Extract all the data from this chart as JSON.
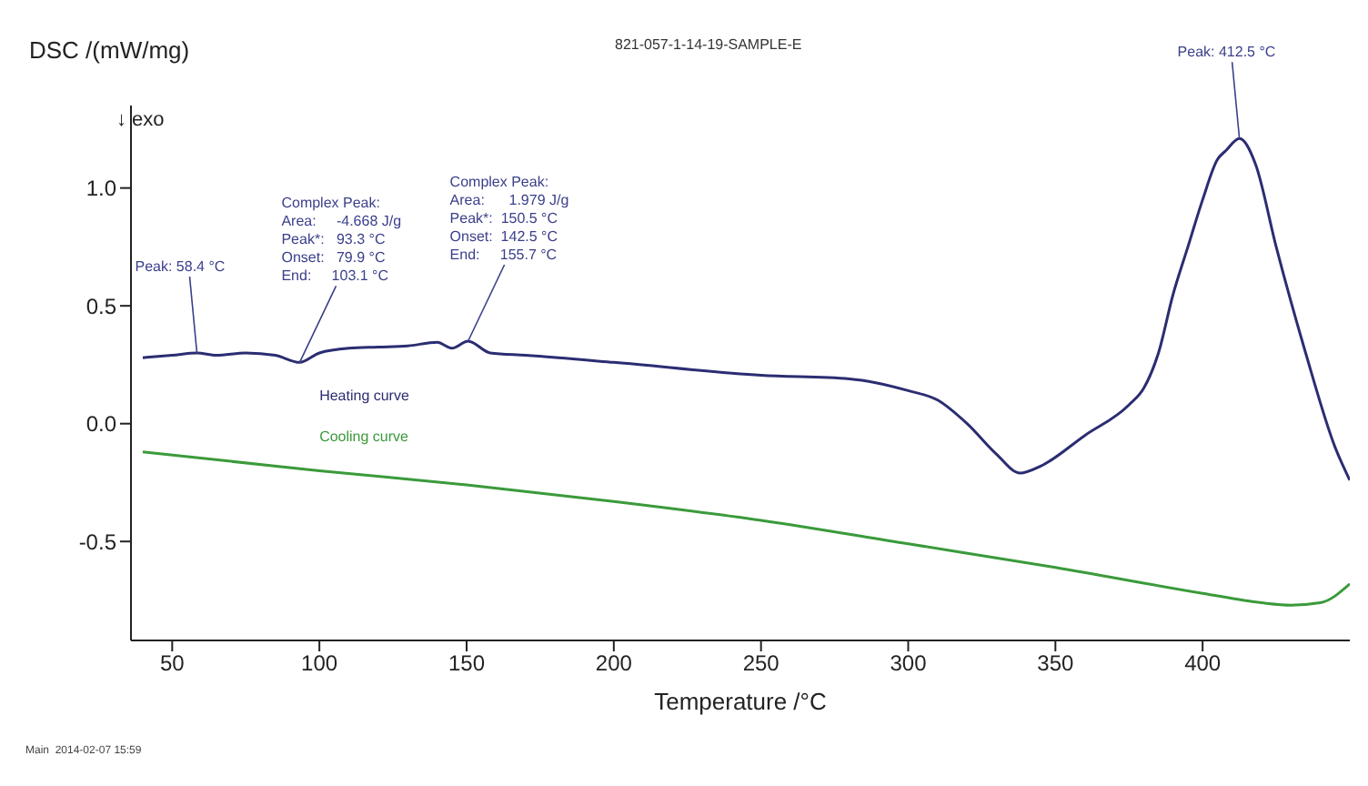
{
  "chart_data": {
    "type": "line",
    "title": "821-057-1-14-19-SAMPLE-E",
    "xlabel": "Temperature /°C",
    "ylabel": "DSC /(mW/mg)",
    "xlim": [
      36,
      450
    ],
    "xticks": [
      50,
      100,
      150,
      200,
      250,
      300,
      350,
      400
    ],
    "ylim": [
      -0.92,
      1.35
    ],
    "yticks": [
      {
        "value": -0.5,
        "label": "-0.5"
      },
      {
        "value": 0,
        "label": "0.0"
      },
      {
        "value": 0.5,
        "label": "0.5"
      },
      {
        "value": 1,
        "label": "1.0"
      }
    ],
    "marker": "none",
    "line_style": "solid",
    "series": [
      {
        "name": "Heating curve",
        "color": "#2b2d72",
        "x": [
          40,
          50,
          58.4,
          65,
          75,
          85,
          93.3,
          100,
          110,
          120,
          130,
          140,
          145,
          150.5,
          158,
          170,
          200,
          250,
          280,
          300,
          310,
          320,
          330,
          338,
          345,
          360,
          375,
          380,
          385,
          390,
          395,
          400,
          405,
          408,
          412.5,
          418,
          425,
          435,
          445,
          450
        ],
        "values": [
          0.28,
          0.29,
          0.3,
          0.29,
          0.3,
          0.29,
          0.26,
          0.3,
          0.32,
          0.325,
          0.33,
          0.345,
          0.32,
          0.35,
          0.3,
          0.29,
          0.26,
          0.205,
          0.19,
          0.14,
          0.1,
          0.0,
          -0.13,
          -0.21,
          -0.18,
          -0.05,
          0.08,
          0.15,
          0.3,
          0.55,
          0.75,
          0.95,
          1.12,
          1.16,
          1.21,
          1.1,
          0.75,
          0.3,
          -0.1,
          -0.24
        ]
      },
      {
        "name": "Cooling curve",
        "color": "#3a9a3a",
        "x": [
          40,
          100,
          150,
          200,
          250,
          300,
          350,
          400,
          420,
          430,
          440,
          450
        ],
        "values": [
          -0.12,
          -0.2,
          -0.26,
          -0.33,
          -0.41,
          -0.51,
          -0.61,
          -0.72,
          -0.76,
          -0.77,
          -0.76,
          -0.68
        ]
      }
    ],
    "annotations": [
      "↓ exo",
      {
        "text": "Peak: 58.4 °C",
        "x": 58.4,
        "y": 0.3
      },
      {
        "text": "Complex Peak:\nArea:     -4.668 J/g\nPeak*:   93.3 °C\nOnset:   79.9 °C\nEnd:     103.1 °C",
        "x": 93.3,
        "y": 0.26
      },
      {
        "text": "Complex Peak:\nArea:      1.979 J/g\nPeak*:  150.5 °C\nOnset:  142.5 °C\nEnd:     155.7 °C",
        "x": 150.5,
        "y": 0.35
      },
      {
        "text": "Peak: 412.5 °C",
        "x": 412.5,
        "y": 1.21
      },
      "Main  2014-02-07 15:59"
    ]
  }
}
